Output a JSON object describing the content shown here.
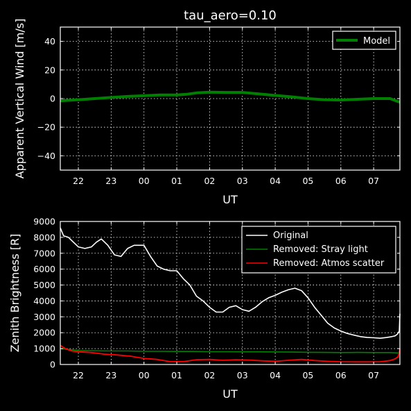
{
  "chart_data": [
    {
      "type": "line",
      "title": "tau_aero=0.10",
      "xlabel": "UT",
      "ylabel": "Apparent Vertical Wind [m/s]",
      "xlim": [
        21.45,
        31.8
      ],
      "ylim": [
        -50,
        50
      ],
      "xticks": [
        22,
        23,
        24,
        25,
        26,
        27,
        28,
        29,
        30,
        31
      ],
      "xticklabels": [
        "22",
        "23",
        "00",
        "01",
        "02",
        "03",
        "04",
        "05",
        "06",
        "07"
      ],
      "yticks": [
        -40,
        -20,
        0,
        20,
        40
      ],
      "yticklabels": [
        "−40",
        "−20",
        "0",
        "20",
        "40"
      ],
      "grid": true,
      "legend": "top-right",
      "series": [
        {
          "name": "Model",
          "color": "#008000",
          "x": [
            21.45,
            22.0,
            22.5,
            23.0,
            23.5,
            24.0,
            24.5,
            25.0,
            25.3,
            25.6,
            26.0,
            26.5,
            27.0,
            27.5,
            28.0,
            28.5,
            29.0,
            29.5,
            30.0,
            30.5,
            31.0,
            31.5,
            31.8
          ],
          "y": [
            -1.5,
            -0.8,
            0,
            0.8,
            1.5,
            2.0,
            2.5,
            2.5,
            3.0,
            4.0,
            4.5,
            4.3,
            4.3,
            3.3,
            2.2,
            1.2,
            0,
            -0.8,
            -1.0,
            -0.5,
            0,
            0,
            -2.5
          ]
        }
      ]
    },
    {
      "type": "line",
      "xlabel": "UT",
      "ylabel": "Zenith Brightness [R]",
      "xlim": [
        21.45,
        31.8
      ],
      "ylim": [
        0,
        9000
      ],
      "xticks": [
        22,
        23,
        24,
        25,
        26,
        27,
        28,
        29,
        30,
        31
      ],
      "xticklabels": [
        "22",
        "23",
        "00",
        "01",
        "02",
        "03",
        "04",
        "05",
        "06",
        "07"
      ],
      "yticks": [
        0,
        1000,
        2000,
        3000,
        4000,
        5000,
        6000,
        7000,
        8000,
        9000
      ],
      "yticklabels": [
        "0",
        "1000",
        "2000",
        "3000",
        "4000",
        "5000",
        "6000",
        "7000",
        "8000",
        "9000"
      ],
      "grid": true,
      "legend": "top-right",
      "series": [
        {
          "name": "Original",
          "color": "#ffffff",
          "x": [
            21.45,
            21.55,
            21.7,
            21.85,
            22.0,
            22.2,
            22.4,
            22.55,
            22.7,
            22.9,
            23.1,
            23.3,
            23.5,
            23.7,
            23.9,
            24.0,
            24.2,
            24.4,
            24.6,
            24.8,
            25.0,
            25.2,
            25.4,
            25.6,
            25.8,
            26.0,
            26.2,
            26.4,
            26.6,
            26.8,
            27.0,
            27.2,
            27.4,
            27.6,
            27.8,
            28.0,
            28.2,
            28.4,
            28.6,
            28.8,
            29.0,
            29.2,
            29.4,
            29.6,
            29.8,
            30.0,
            30.2,
            30.4,
            30.6,
            30.8,
            31.0,
            31.2,
            31.4,
            31.55,
            31.65,
            31.72,
            31.78,
            31.8
          ],
          "y": [
            8600,
            8100,
            8000,
            7700,
            7400,
            7300,
            7400,
            7700,
            7900,
            7500,
            6900,
            6800,
            7300,
            7500,
            7500,
            7500,
            6800,
            6200,
            6000,
            5900,
            5900,
            5400,
            5000,
            4300,
            4000,
            3600,
            3300,
            3300,
            3600,
            3700,
            3450,
            3350,
            3600,
            3950,
            4200,
            4350,
            4550,
            4700,
            4800,
            4650,
            4200,
            3600,
            3100,
            2600,
            2300,
            2100,
            1950,
            1850,
            1750,
            1700,
            1680,
            1650,
            1700,
            1750,
            1800,
            1900,
            2100,
            3200
          ]
        },
        {
          "name": "Removed: Stray light",
          "color": "#008000",
          "x": [
            21.45,
            21.7,
            22.0,
            22.5,
            23.0,
            23.5,
            24.0,
            24.5,
            25.0,
            25.5,
            26.0,
            26.5,
            27.0,
            27.5,
            28.0,
            28.5,
            29.0,
            29.5,
            30.0,
            30.5,
            31.0,
            31.5,
            31.8
          ],
          "y": [
            1000,
            950,
            880,
            860,
            850,
            850,
            830,
            830,
            820,
            820,
            810,
            810,
            800,
            800,
            790,
            780,
            770,
            760,
            750,
            760,
            750,
            750,
            720
          ]
        },
        {
          "name": "Removed: Atmos scatter",
          "color": "#ff0000",
          "x": [
            21.45,
            21.6,
            21.8,
            22.0,
            22.4,
            22.8,
            23.2,
            23.6,
            24.0,
            24.4,
            24.8,
            25.2,
            25.6,
            26.0,
            26.4,
            26.8,
            27.2,
            27.6,
            28.0,
            28.4,
            28.8,
            29.2,
            29.6,
            30.0,
            30.4,
            30.8,
            31.2,
            31.5,
            31.65,
            31.75,
            31.8
          ],
          "y": [
            1200,
            1000,
            850,
            800,
            750,
            650,
            600,
            520,
            380,
            320,
            180,
            180,
            300,
            320,
            260,
            300,
            280,
            230,
            200,
            260,
            320,
            250,
            200,
            170,
            160,
            160,
            170,
            250,
            350,
            500,
            1000
          ]
        }
      ]
    }
  ]
}
